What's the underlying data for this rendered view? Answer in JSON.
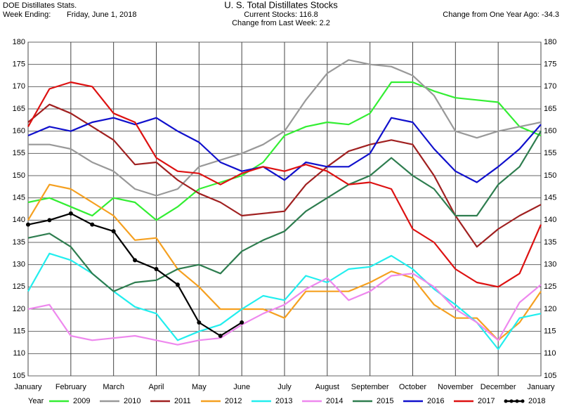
{
  "header": {
    "source": "DOE Distillates Stats.",
    "week_label": "Week Ending:",
    "week_value": "Friday, June 1, 2018",
    "change_year": "Change from One Year Ago: -34.3",
    "current": "Current Stocks: 116.8",
    "change_week": "Change from Last Week:  2.2"
  },
  "chart_data": {
    "type": "line",
    "title": "U. S. Total Distillates Stocks",
    "categories": [
      "January",
      null,
      "February",
      null,
      "March",
      null,
      "April",
      null,
      "May",
      null,
      "June",
      null,
      "July",
      null,
      "August",
      null,
      "September",
      null,
      "October",
      null,
      "November",
      null,
      "December",
      null,
      "January"
    ],
    "ylim": [
      105,
      180
    ],
    "yticks": [
      105,
      110,
      115,
      120,
      125,
      130,
      135,
      140,
      145,
      150,
      155,
      160,
      165,
      170,
      175,
      180
    ],
    "grid": true,
    "legend_title": "Year",
    "legend": "bottom",
    "series": [
      {
        "name": "2009",
        "color": "#33ee33",
        "values": [
          144,
          145,
          143,
          141,
          145,
          144,
          140,
          143,
          147,
          148.5,
          150,
          153,
          159,
          161,
          162,
          161.5,
          164,
          171,
          171,
          169,
          167.5,
          167,
          166.5,
          161,
          159
        ]
      },
      {
        "name": "2010",
        "color": "#999999",
        "values": [
          157,
          157,
          156,
          153,
          151,
          147,
          145.5,
          147,
          152,
          153.5,
          155,
          157,
          160,
          167,
          173,
          176,
          175,
          174.5,
          172.5,
          168,
          160,
          158.5,
          160,
          161,
          162
        ]
      },
      {
        "name": "2011",
        "color": "#a02020",
        "values": [
          162,
          166,
          164,
          161,
          158,
          152.5,
          153,
          149,
          146,
          144,
          141,
          141.5,
          142,
          148,
          152,
          155.5,
          157,
          158,
          157,
          150,
          141,
          134,
          138,
          141,
          143.5
        ]
      },
      {
        "name": "2012",
        "color": "#f5a020",
        "values": [
          140,
          148,
          147,
          144,
          141,
          135.5,
          136,
          129,
          125,
          120,
          120,
          120,
          118,
          124,
          124,
          124,
          126,
          128.5,
          127,
          121,
          118,
          118,
          113,
          117,
          124
        ]
      },
      {
        "name": "2013",
        "color": "#22eeee",
        "values": [
          124,
          132.5,
          131,
          128,
          124,
          120.5,
          119,
          113,
          115,
          116.5,
          120,
          123,
          122,
          127.5,
          126,
          129,
          129.5,
          132,
          129,
          124.5,
          121,
          117,
          111,
          118,
          119
        ]
      },
      {
        "name": "2014",
        "color": "#ee88ee",
        "values": [
          120,
          121,
          114,
          113,
          113.5,
          114,
          113,
          112,
          113,
          113.5,
          116.5,
          119,
          121,
          124.5,
          127,
          122,
          124,
          127.5,
          128,
          125,
          120,
          117,
          113,
          121.5,
          125.5
        ]
      },
      {
        "name": "2015",
        "color": "#2e7d4f",
        "values": [
          136,
          137,
          134,
          128,
          124,
          126,
          126.5,
          129,
          130,
          128,
          133,
          135.5,
          137.5,
          142,
          145,
          148,
          150,
          154,
          150,
          147,
          141,
          141,
          148,
          152,
          160
        ]
      },
      {
        "name": "2016",
        "color": "#1010cc",
        "values": [
          159,
          161,
          160,
          162,
          163,
          161.5,
          163,
          160,
          157.5,
          153,
          151,
          152,
          149,
          153,
          152,
          152,
          155,
          163,
          162,
          156,
          151,
          148.5,
          152,
          156,
          161.5
        ]
      },
      {
        "name": "2017",
        "color": "#dd1111",
        "values": [
          161,
          169.5,
          171,
          170,
          164,
          162,
          154,
          151,
          150.5,
          148,
          150.5,
          152,
          151,
          152.5,
          151,
          148,
          148.5,
          147,
          138,
          135,
          129,
          126,
          125,
          128,
          139
        ]
      },
      {
        "name": "2018",
        "color": "#000000",
        "markers": true,
        "values": [
          139,
          140,
          141.5,
          139,
          137.5,
          131,
          129,
          125.5,
          117,
          114,
          117,
          null,
          null,
          null,
          null,
          null,
          null,
          null,
          null,
          null,
          null,
          null,
          null,
          null,
          null
        ]
      }
    ]
  }
}
